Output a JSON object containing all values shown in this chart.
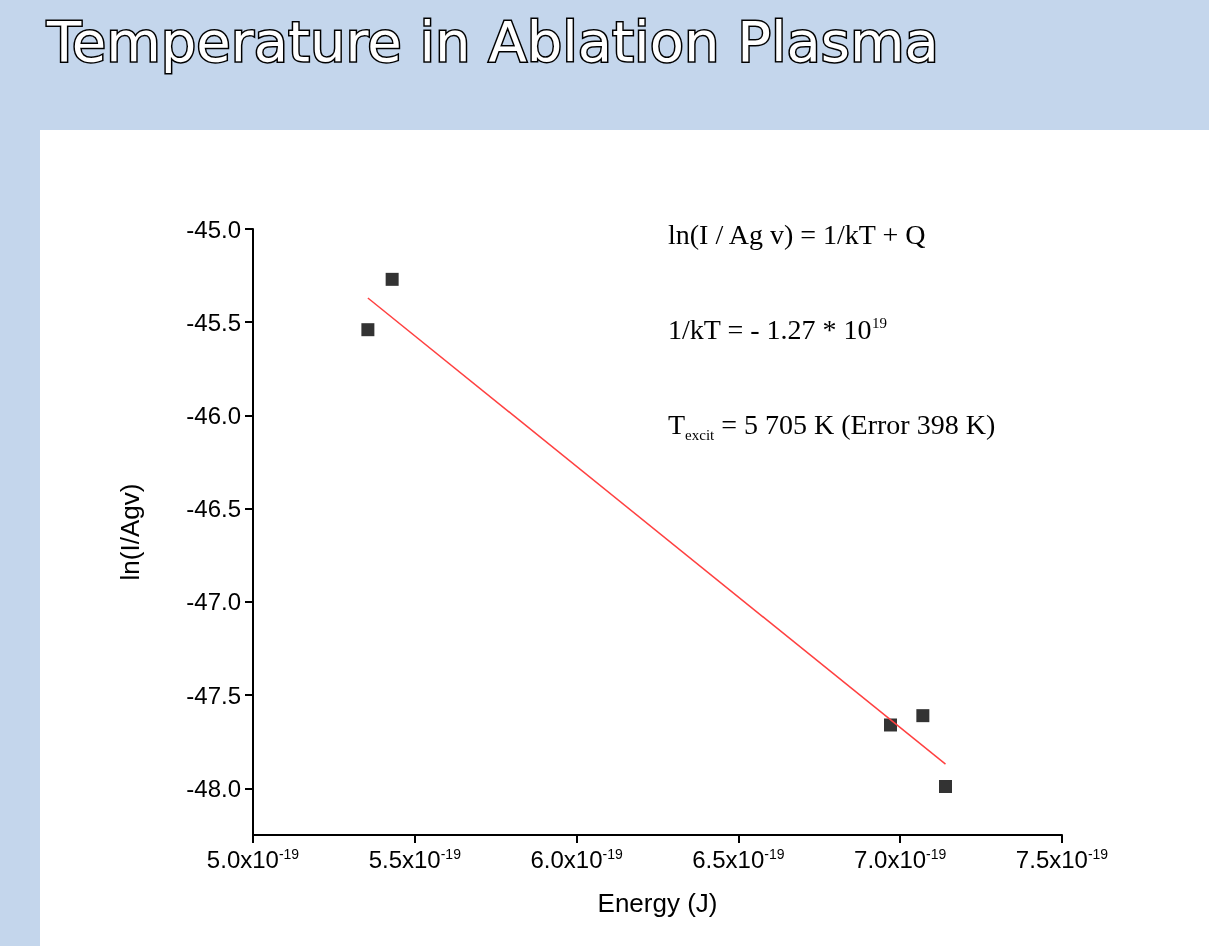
{
  "chart_data": {
    "type": "scatter",
    "title": "Temperature in Ablation Plasma",
    "xlabel": "Energy (J)",
    "ylabel": "ln(I/Agv)",
    "annotations": [
      "ln(I / Ag v) = 1/kT + Q",
      "1/kT = - 1.27 * 10$^{19}$",
      "T$_{excit}$ = 5 705 K (Error 398 K)"
    ],
    "series": [
      {
        "color": "#000000",
        "marker": "square",
        "x": [
          5.355e-19,
          5.43e-19,
          6.97e-19,
          7.07e-19,
          7.14e-19
        ],
        "values": [
          -45.54,
          -45.27,
          -47.66,
          -47.61,
          -47.99
        ]
      },
      {
        "type": "line",
        "color": "#ff4040",
        "marker": "none",
        "line_style": "solid",
        "x": [
          5.355e-19,
          7.14e-19
        ],
        "values": [
          -45.37,
          -47.87
        ]
      }
    ],
    "xlim": [
      5e-19,
      7.5e-19
    ],
    "ylim": [
      -48.25,
      -45.0
    ],
    "xticks": [
      {
        "value": 5e-19,
        "label": "5.0x10$^{-19}$"
      },
      {
        "value": 5.5e-19,
        "label": "5.5x10$^{-19}$"
      },
      {
        "value": 6e-19,
        "label": "6.0x10$^{-19}$"
      },
      {
        "value": 6.5e-19,
        "label": "6.5x10$^{-19}$"
      },
      {
        "value": 7e-19,
        "label": "7.0x10$^{-19}$"
      },
      {
        "value": 7.5e-19,
        "label": "7.5x10$^{-19}$"
      }
    ],
    "yticks": [
      {
        "value": -45.0,
        "label": "-45.0"
      },
      {
        "value": -45.5,
        "label": "-45.5"
      },
      {
        "value": -46.0,
        "label": "-46.0"
      },
      {
        "value": -46.5,
        "label": "-46.5"
      },
      {
        "value": -47.0,
        "label": "-47.0"
      },
      {
        "value": -47.5,
        "label": "-47.5"
      },
      {
        "value": -48.0,
        "label": "-48.0"
      }
    ],
    "grid": false
  }
}
